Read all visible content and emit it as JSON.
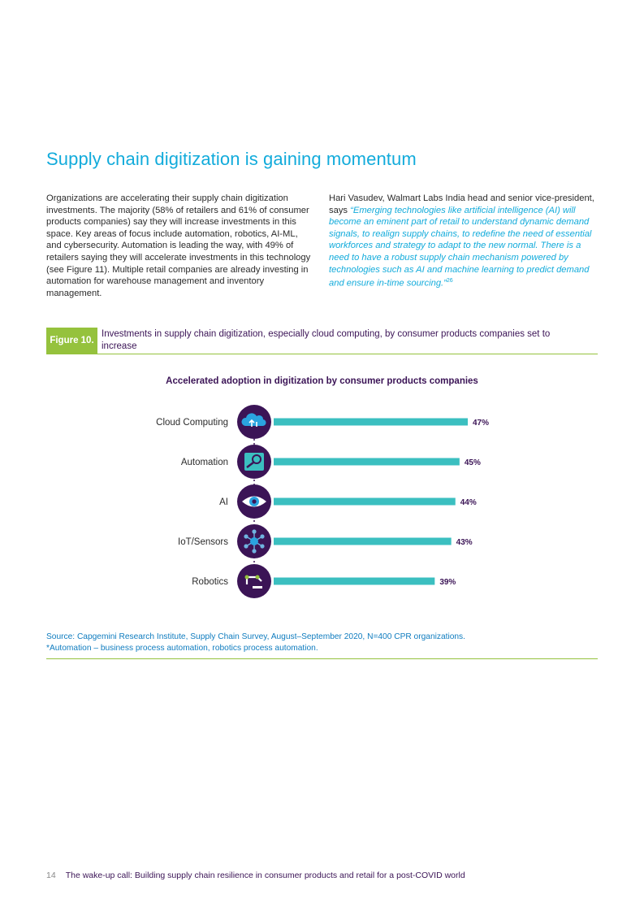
{
  "heading": "Supply chain digitization is gaining momentum",
  "body_left": "Organizations are accelerating their supply chain digitization investments. The majority (58% of retailers and 61% of consumer products companies) say they will increase investments in this space. Key areas of focus include automation, robotics, AI-ML, and cybersecurity. Automation is leading the way, with 49% of retailers saying they will accelerate investments in this technology (see Figure 11). Multiple retail companies are already investing in automation for warehouse management and inventory management.",
  "body_right": {
    "intro": "Hari Vasudev, Walmart Labs India head and senior vice-president, says ",
    "quote": "“Emerging technologies like artificial intelligence (AI) will become an eminent part of retail to understand dynamic demand signals, to realign supply chains, to redefine the need of essential workforces and strategy to adapt to the new normal. There is a need to have a robust supply chain mechanism powered by technologies such as AI and machine learning to predict demand and ensure in-time sourcing.”",
    "footnote": "26"
  },
  "figure": {
    "label": "Figure 10.",
    "caption": "Investments in supply chain digitization, especially cloud computing, by consumer products companies set to increase"
  },
  "chart_data": {
    "type": "bar",
    "orientation": "horizontal",
    "title": "Accelerated adoption in digitization by consumer products companies",
    "categories": [
      "Cloud Computing",
      "Automation",
      "AI",
      "IoT/Sensors",
      "Robotics"
    ],
    "values": [
      47,
      45,
      44,
      43,
      39
    ],
    "value_labels": [
      "47%",
      "45%",
      "44%",
      "43%",
      "39%"
    ],
    "icons": [
      "cloud-upload-icon",
      "automation-icon",
      "eye-icon",
      "network-nodes-icon",
      "robotic-arm-icon"
    ],
    "xlim": [
      0,
      50
    ],
    "grid": false,
    "legend": "none"
  },
  "colors": {
    "bar": "#3bbfc0",
    "icon_circle": "#3b1456",
    "accent": "#95c23d",
    "title": "#12abdb"
  },
  "source": {
    "line1": "Source: Capgemini Research Institute, Supply Chain Survey, August–September 2020, N=400 CPR organizations.",
    "line2": "*Automation – business process automation, robotics process automation."
  },
  "footer": {
    "page": "14",
    "text": "The wake-up call: Building supply chain resilience in consumer products and retail for a post-COVID world"
  }
}
